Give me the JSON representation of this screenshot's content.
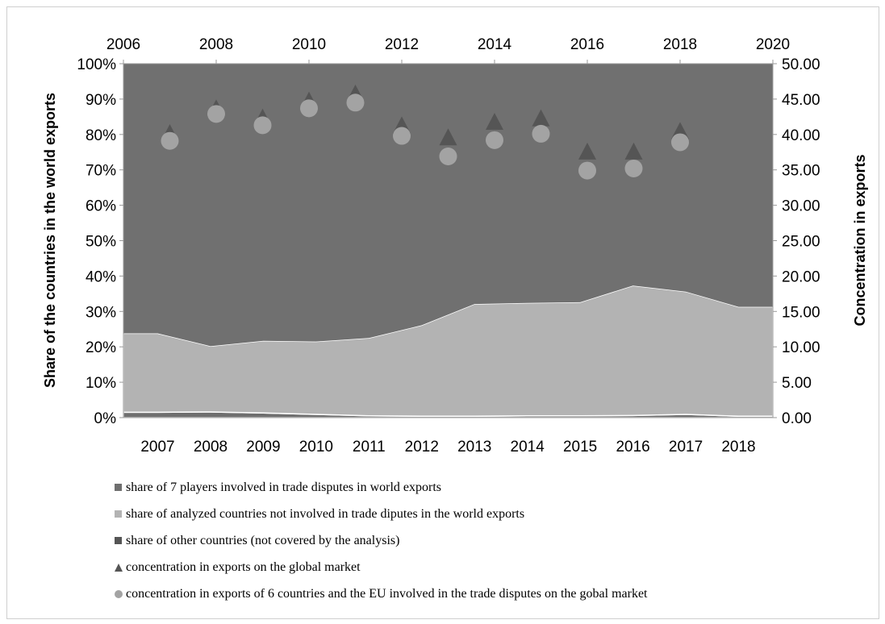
{
  "chart_data": {
    "type": "area",
    "categories": [
      "2007",
      "2008",
      "2009",
      "2010",
      "2011",
      "2012",
      "2013",
      "2014",
      "2015",
      "2016",
      "2017",
      "2018"
    ],
    "ylabel": "Share of the  countries in the world exports",
    "y2label": "Concentration in exports",
    "ylim": [
      0,
      100
    ],
    "y2lim": [
      0,
      50
    ],
    "yticks": [
      "0%",
      "10%",
      "20%",
      "30%",
      "40%",
      "50%",
      "60%",
      "70%",
      "80%",
      "90%",
      "100%"
    ],
    "y2ticks": [
      "0.00",
      "5.00",
      "10.00",
      "15.00",
      "20.00",
      "25.00",
      "30.00",
      "35.00",
      "40.00",
      "45.00",
      "50.00"
    ],
    "x2ticks": [
      "2006",
      "2008",
      "2010",
      "2012",
      "2014",
      "2016",
      "2018",
      "2020"
    ],
    "x2lim": [
      2006,
      2020
    ],
    "series": [
      {
        "name": "share of 7 players involved in trade disputes in world exports",
        "kind": "area",
        "color": "#6f6f6f",
        "values": [
          1.5,
          1.6,
          1.3,
          0.9,
          0.5,
          0.4,
          0.4,
          0.5,
          0.5,
          0.6,
          0.9,
          0.4
        ]
      },
      {
        "name": "share of analyzed countries not involved in trade diputes in the world exports",
        "kind": "area",
        "color": "#b3b3b3",
        "values": [
          22.3,
          18.6,
          20.4,
          20.6,
          22.0,
          25.7,
          31.7,
          31.9,
          32.1,
          36.7,
          34.7,
          30.9
        ]
      },
      {
        "name": "share of other countries (not covered by the analysis)",
        "kind": "area",
        "color": "#707070",
        "values": [
          76.2,
          79.8,
          78.3,
          78.5,
          77.5,
          73.9,
          67.9,
          67.6,
          67.4,
          62.7,
          64.4,
          68.7
        ]
      },
      {
        "name": "concentration in exports on the global market",
        "kind": "triangle",
        "axis": "y2",
        "color": "#555555",
        "x": [
          2007,
          2008,
          2009,
          2010,
          2011,
          2012,
          2013,
          2014,
          2015,
          2016,
          2017,
          2018
        ],
        "values": [
          40.2,
          43.7,
          42.4,
          44.8,
          45.8,
          41.3,
          39.6,
          41.8,
          42.3,
          37.6,
          37.6,
          40.5
        ]
      },
      {
        "name": "concentration in exports of 6 countries and the EU involved in the trade disputes on the gobal market",
        "kind": "circle",
        "axis": "y2",
        "color": "#a3a3a3",
        "x": [
          2007,
          2008,
          2009,
          2010,
          2011,
          2012,
          2013,
          2014,
          2015,
          2016,
          2017,
          2018
        ],
        "values": [
          39.1,
          42.9,
          41.3,
          43.7,
          44.5,
          39.8,
          36.9,
          39.2,
          40.1,
          34.9,
          35.2,
          38.9
        ]
      }
    ]
  }
}
